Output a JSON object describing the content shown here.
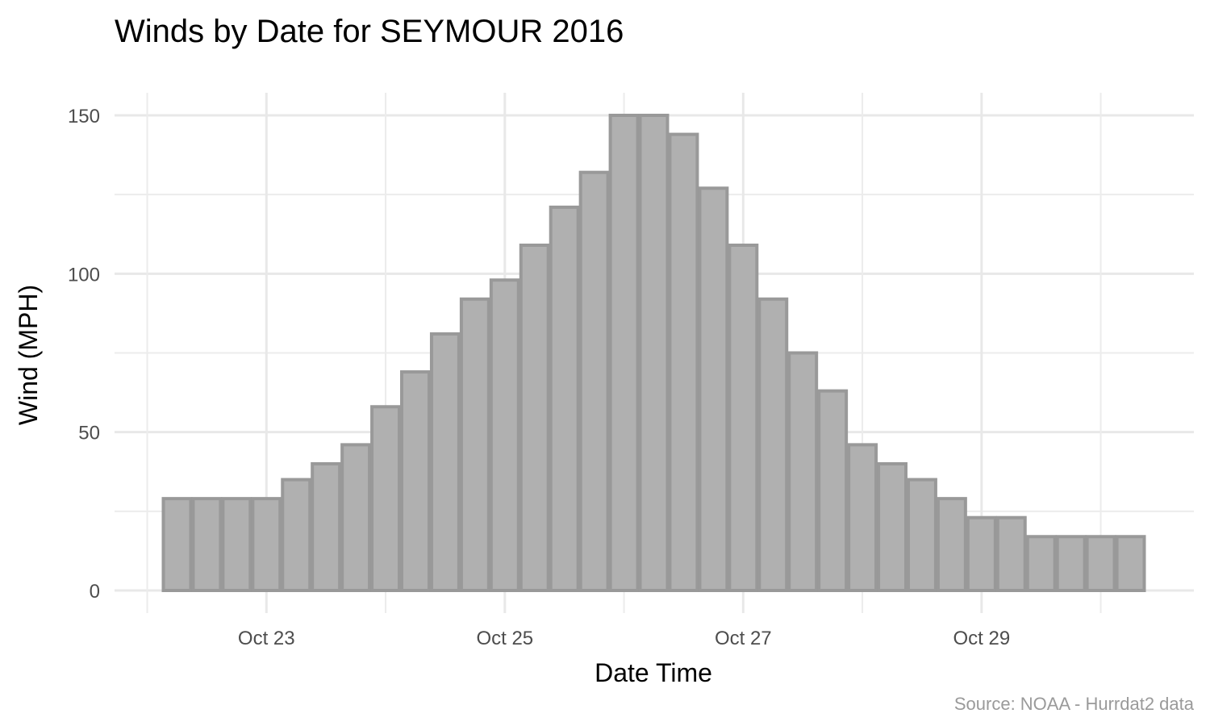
{
  "chart_data": {
    "type": "bar",
    "title": "Winds by Date for SEYMOUR 2016",
    "xlabel": "Date Time",
    "ylabel": "Wind (MPH)",
    "caption": "Source: NOAA - Hurrdat2 data",
    "ylim": [
      0,
      157
    ],
    "y_ticks": [
      0,
      50,
      100,
      150
    ],
    "x_ticks": [
      {
        "value": "2016-10-23",
        "label": "Oct 23"
      },
      {
        "value": "2016-10-25",
        "label": "Oct 25"
      },
      {
        "value": "2016-10-27",
        "label": "Oct 27"
      },
      {
        "value": "2016-10-29",
        "label": "Oct 29"
      }
    ],
    "grid": true,
    "x": [
      "2016-10-22 06:00",
      "2016-10-22 12:00",
      "2016-10-22 18:00",
      "2016-10-23 00:00",
      "2016-10-23 06:00",
      "2016-10-23 12:00",
      "2016-10-23 18:00",
      "2016-10-24 00:00",
      "2016-10-24 06:00",
      "2016-10-24 12:00",
      "2016-10-24 18:00",
      "2016-10-25 00:00",
      "2016-10-25 06:00",
      "2016-10-25 12:00",
      "2016-10-25 18:00",
      "2016-10-26 00:00",
      "2016-10-26 06:00",
      "2016-10-26 12:00",
      "2016-10-26 18:00",
      "2016-10-27 00:00",
      "2016-10-27 06:00",
      "2016-10-27 12:00",
      "2016-10-27 18:00",
      "2016-10-28 00:00",
      "2016-10-28 06:00",
      "2016-10-28 12:00",
      "2016-10-28 18:00",
      "2016-10-29 00:00",
      "2016-10-29 06:00",
      "2016-10-29 12:00",
      "2016-10-29 18:00",
      "2016-10-30 00:00",
      "2016-10-30 06:00"
    ],
    "values": [
      29,
      29,
      29,
      29,
      35,
      40,
      46,
      58,
      69,
      81,
      92,
      98,
      109,
      121,
      132,
      150,
      150,
      144,
      127,
      109,
      92,
      75,
      63,
      46,
      40,
      35,
      29,
      23,
      23,
      17,
      17,
      17,
      17
    ],
    "colors": {
      "bar_fill": "#b0b0b0",
      "bar_stroke": "#999999"
    }
  }
}
